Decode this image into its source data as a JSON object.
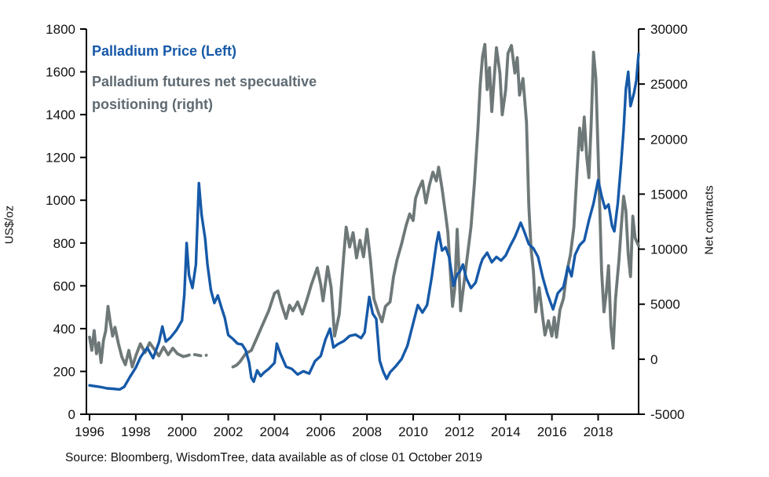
{
  "legend": {
    "price": "Palladium Price (Left)",
    "positioning_line1": "Palladium futures net specualtive",
    "positioning_line2": "positioning (right)"
  },
  "source": "Source: Bloomberg, WisdomTree, data available as of close 01 October 2019",
  "colors": {
    "price": "#1659A8",
    "positioning": "#6F7878",
    "positioning_text": "#5F6A72",
    "axis": "#000000"
  },
  "axes": {
    "left": {
      "title": "US$/oz",
      "ticks": [
        0,
        200,
        400,
        600,
        800,
        1000,
        1200,
        1400,
        1600,
        1800
      ]
    },
    "right": {
      "title": "Net contracts",
      "ticks": [
        -5000,
        0,
        5000,
        10000,
        15000,
        20000,
        25000,
        30000
      ]
    },
    "x": {
      "ticks": [
        1996,
        1998,
        2000,
        2002,
        2004,
        2006,
        2008,
        2010,
        2012,
        2014,
        2016,
        2018
      ]
    }
  },
  "chart_data": {
    "type": "line",
    "title": "",
    "x_range": [
      1996,
      2019.75
    ],
    "left_axis": {
      "label": "US$/oz",
      "range": [
        0,
        1800
      ]
    },
    "right_axis": {
      "label": "Net contracts",
      "range": [
        -5000,
        30000
      ]
    },
    "series": [
      {
        "name": "Palladium Price (Left)",
        "axis": "left",
        "color": "#1659A8",
        "width": 3.4,
        "segments": [
          {
            "style": "solid",
            "x": [
              1996.0,
              1996.25,
              1996.5,
              1996.75,
              1997.0,
              1997.3,
              1997.5,
              1997.75,
              1998.0,
              1998.2,
              1998.35,
              1998.5,
              1998.75,
              1999.0,
              1999.15,
              1999.3,
              1999.5,
              1999.75,
              2000.0,
              2000.1,
              2000.2,
              2000.3,
              2000.45,
              2000.6,
              2000.73,
              2000.85,
              2001.0,
              2001.1,
              2001.25,
              2001.4,
              2001.55,
              2001.7,
              2001.85,
              2002.0,
              2002.2,
              2002.4,
              2002.6,
              2002.75,
              2002.9,
              2003.0,
              2003.1,
              2003.25,
              2003.4,
              2003.55,
              2003.75,
              2004.0,
              2004.1,
              2004.25,
              2004.5,
              2004.75,
              2005.0,
              2005.25,
              2005.5,
              2005.75,
              2006.0,
              2006.2,
              2006.4,
              2006.55,
              2006.75,
              2007.0,
              2007.25,
              2007.5,
              2007.75,
              2007.9,
              2008.1,
              2008.25,
              2008.4,
              2008.55,
              2008.7,
              2008.85,
              2009.0,
              2009.25,
              2009.5,
              2009.75,
              2010.0,
              2010.2,
              2010.4,
              2010.6,
              2010.8,
              2011.0,
              2011.1,
              2011.25,
              2011.4,
              2011.55,
              2011.75,
              2011.9,
              2012.0,
              2012.15,
              2012.3,
              2012.5,
              2012.7,
              2012.9,
              2013.0,
              2013.2,
              2013.4,
              2013.6,
              2013.8,
              2014.0,
              2014.2,
              2014.4,
              2014.65,
              2014.8,
              2015.0,
              2015.2,
              2015.4,
              2015.6,
              2015.8,
              2016.05,
              2016.25,
              2016.5,
              2016.7,
              2016.85,
              2017.0,
              2017.2,
              2017.4,
              2017.6,
              2017.8,
              2018.0,
              2018.15,
              2018.3,
              2018.45,
              2018.6,
              2018.7,
              2018.85,
              2019.0,
              2019.1,
              2019.2,
              2019.3,
              2019.4,
              2019.55,
              2019.65,
              2019.75
            ],
            "values": [
              135,
              131,
              127,
              121,
              119,
              116,
              128,
              175,
              218,
              265,
              290,
              310,
              262,
              335,
              410,
              340,
              358,
              392,
              438,
              560,
              800,
              650,
              590,
              700,
              1080,
              930,
              820,
              700,
              580,
              520,
              555,
              500,
              450,
              370,
              352,
              330,
              326,
              300,
              242,
              170,
              152,
              205,
              178,
              195,
              212,
              240,
              330,
              285,
              222,
              212,
              186,
              201,
              190,
              248,
              272,
              348,
              400,
              312,
              328,
              342,
              366,
              372,
              356,
              382,
              548,
              470,
              445,
              250,
              200,
              165,
              196,
              225,
              258,
              320,
              425,
              510,
              475,
              510,
              640,
              795,
              850,
              765,
              780,
              735,
              600,
              655,
              662,
              700,
              635,
              590,
              615,
              695,
              725,
              755,
              710,
              735,
              718,
              742,
              788,
              828,
              895,
              855,
              795,
              775,
              735,
              640,
              565,
              490,
              565,
              595,
              690,
              645,
              745,
              790,
              812,
              905,
              985,
              1095,
              1020,
              962,
              980,
              880,
              855,
              985,
              1180,
              1330,
              1520,
              1600,
              1440,
              1500,
              1560,
              1685
            ]
          }
        ]
      },
      {
        "name": "Palladium futures net specualtive positioning (right)",
        "axis": "right",
        "color": "#6F7878",
        "width": 3.8,
        "segments": [
          {
            "style": "solid",
            "x": [
              1996.0,
              1996.1,
              1996.2,
              1996.3,
              1996.4,
              1996.5,
              1996.6,
              1996.7,
              1996.8,
              1996.9,
              1997.0,
              1997.1,
              1997.25,
              1997.4,
              1997.55,
              1997.7,
              1997.85,
              1998.0,
              1998.2,
              1998.4,
              1998.6,
              1998.8,
              1999.0,
              1999.2,
              1999.4,
              1999.6,
              1999.8,
              2000.05
            ],
            "values": [
              2000,
              800,
              2600,
              500,
              1500,
              -300,
              1700,
              2600,
              4800,
              3300,
              2100,
              2900,
              1400,
              200,
              -500,
              800,
              -700,
              300,
              1400,
              600,
              1500,
              900,
              300,
              1100,
              400,
              1000,
              500,
              250
            ]
          },
          {
            "style": "dashed",
            "x": [
              2000.05,
              2000.2,
              2000.4,
              2000.6,
              2000.8,
              2001.05
            ],
            "values": [
              250,
              300,
              450,
              400,
              320,
              360
            ]
          },
          {
            "style": "solid",
            "x": [
              2002.2,
              2002.35,
              2002.5,
              2002.75,
              2003.0,
              2003.25,
              2003.5,
              2003.75,
              2004.0,
              2004.15,
              2004.3,
              2004.5,
              2004.65,
              2004.8,
              2005.0,
              2005.2,
              2005.4,
              2005.6,
              2005.85,
              2006.0,
              2006.1,
              2006.3,
              2006.45,
              2006.6,
              2006.8,
              2007.0,
              2007.1,
              2007.25,
              2007.4,
              2007.55,
              2007.7,
              2007.85,
              2008.0,
              2008.15,
              2008.3,
              2008.5,
              2008.65,
              2008.8,
              2009.0,
              2009.15,
              2009.3,
              2009.5,
              2009.7,
              2009.85,
              2010.0,
              2010.1,
              2010.25,
              2010.4,
              2010.55,
              2010.7,
              2010.85,
              2011.0,
              2011.1,
              2011.25,
              2011.4,
              2011.5,
              2011.6,
              2011.7,
              2011.8,
              2011.9,
              2012.0,
              2012.05,
              2012.2,
              2012.35,
              2012.5,
              2012.65,
              2012.8,
              2012.9,
              2013.0,
              2013.1,
              2013.2,
              2013.3,
              2013.4,
              2013.5,
              2013.6,
              2013.75,
              2013.85,
              2014.0,
              2014.1,
              2014.25,
              2014.4,
              2014.5,
              2014.6,
              2014.75,
              2014.9,
              2015.0,
              2015.1,
              2015.2,
              2015.3,
              2015.45,
              2015.6,
              2015.7,
              2015.85,
              2016.0,
              2016.1,
              2016.2,
              2016.35,
              2016.5,
              2016.65,
              2016.8,
              2016.95,
              2017.1,
              2017.2,
              2017.3,
              2017.4,
              2017.5,
              2017.6,
              2017.7,
              2017.8,
              2017.9,
              2018.05,
              2018.15,
              2018.25,
              2018.35,
              2018.45,
              2018.55,
              2018.65,
              2018.75,
              2018.9,
              2019.0,
              2019.1,
              2019.2,
              2019.3,
              2019.4,
              2019.5,
              2019.6,
              2019.75
            ],
            "values": [
              -700,
              -550,
              -250,
              500,
              800,
              2000,
              3200,
              4400,
              6000,
              6200,
              5000,
              3700,
              4900,
              4400,
              5200,
              4100,
              5400,
              6800,
              8300,
              6800,
              5300,
              8400,
              6500,
              2100,
              4100,
              9500,
              12000,
              10200,
              11500,
              9200,
              10800,
              9300,
              11800,
              9000,
              5500,
              4200,
              3400,
              4800,
              5200,
              7500,
              9000,
              10500,
              12200,
              13200,
              12600,
              14600,
              15500,
              16200,
              14200,
              15800,
              17000,
              16200,
              17450,
              15500,
              13200,
              11500,
              8200,
              4800,
              6500,
              11800,
              7200,
              4400,
              7000,
              9500,
              12000,
              16000,
              21000,
              25000,
              27500,
              28600,
              24500,
              26500,
              22500,
              25500,
              28300,
              26000,
              22200,
              24500,
              27800,
              28500,
              26000,
              27400,
              24000,
              25500,
              21500,
              14000,
              10000,
              8000,
              4300,
              6500,
              3800,
              2200,
              3500,
              2100,
              3800,
              2000,
              4500,
              5500,
              8000,
              9500,
              12000,
              17500,
              21000,
              19000,
              22000,
              18500,
              16500,
              21500,
              27900,
              25500,
              15000,
              8000,
              4300,
              6000,
              8500,
              3000,
              1000,
              5500,
              9000,
              12000,
              14800,
              13500,
              9500,
              7500,
              13000,
              11000,
              10300
            ]
          }
        ]
      }
    ]
  }
}
